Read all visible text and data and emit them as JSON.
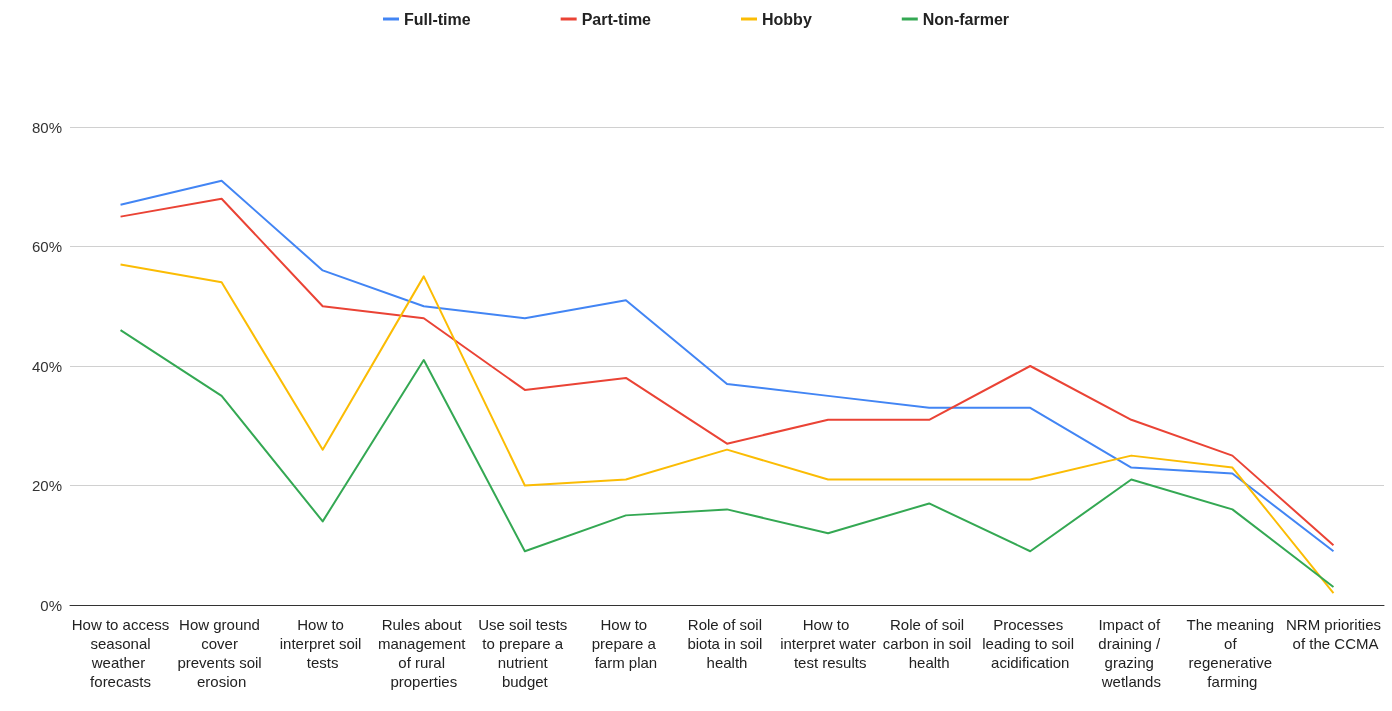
{
  "chart_data": {
    "type": "line",
    "categories": [
      "How to access seasonal weather forecasts",
      "How ground cover prevents soil erosion",
      "How to interpret soil tests",
      "Rules about management of rural properties",
      "Use soil tests to prepare a nutrient budget",
      "How to prepare a farm plan",
      "Role of soil biota in soil health",
      "How to interpret water test results",
      "Role of soil carbon in soil health",
      "Processes leading to soil acidification",
      "Impact of draining / grazing wetlands",
      "The meaning of regenerative farming",
      "NRM priorities of the CCMA"
    ],
    "series": [
      {
        "name": "Full-time",
        "color": "#4285f4",
        "values": [
          67,
          71,
          56,
          50,
          48,
          51,
          37,
          35,
          33,
          33,
          23,
          22,
          9
        ]
      },
      {
        "name": "Part-time",
        "color": "#ea4335",
        "values": [
          65,
          68,
          50,
          48,
          36,
          38,
          27,
          31,
          31,
          40,
          31,
          25,
          10
        ]
      },
      {
        "name": "Hobby",
        "color": "#fbbc04",
        "values": [
          57,
          54,
          26,
          55,
          20,
          21,
          26,
          21,
          21,
          21,
          25,
          23,
          2
        ]
      },
      {
        "name": "Non-farmer",
        "color": "#34a853",
        "values": [
          46,
          35,
          14,
          41,
          9,
          15,
          16,
          12,
          17,
          9,
          21,
          16,
          3
        ]
      }
    ],
    "ylim": [
      0,
      80
    ],
    "yticks": [
      {
        "value": 0,
        "label": "0%"
      },
      {
        "value": 20,
        "label": "20%"
      },
      {
        "value": 40,
        "label": "40%"
      },
      {
        "value": 60,
        "label": "60%"
      },
      {
        "value": 80,
        "label": "80%"
      }
    ],
    "grid": "y",
    "legend": "top",
    "marker": "none",
    "line_style": "solid"
  }
}
